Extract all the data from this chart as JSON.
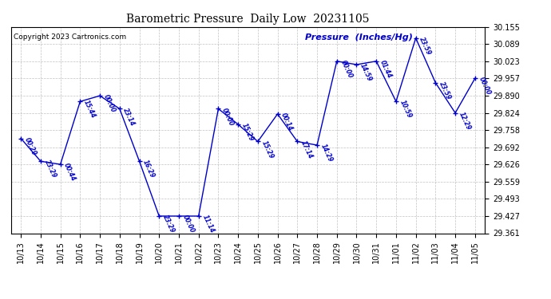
{
  "title": "Barometric Pressure  Daily Low  20231105",
  "pressure_label": "Pressure  (Inches/Hg)",
  "copyright": "Copyright 2023 Cartronics.com",
  "background_color": "#ffffff",
  "line_color": "#0000cc",
  "text_color": "#0000cc",
  "grid_color": "#bbbbbb",
  "title_color": "#000000",
  "ylim_min": 29.361,
  "ylim_max": 30.155,
  "yticks": [
    29.361,
    29.427,
    29.493,
    29.559,
    29.626,
    29.692,
    29.758,
    29.824,
    29.89,
    29.957,
    30.023,
    30.089,
    30.155
  ],
  "data_points": [
    {
      "date": "10/13",
      "value": 29.726,
      "label": "00:29"
    },
    {
      "date": "10/14",
      "value": 29.638,
      "label": "23:29"
    },
    {
      "date": "10/15",
      "value": 29.626,
      "label": "00:44"
    },
    {
      "date": "10/16",
      "value": 29.868,
      "label": "15:44"
    },
    {
      "date": "10/17",
      "value": 29.89,
      "label": "00:00"
    },
    {
      "date": "10/18",
      "value": 29.84,
      "label": "23:14"
    },
    {
      "date": "10/19",
      "value": 29.638,
      "label": "16:29"
    },
    {
      "date": "10/20",
      "value": 29.427,
      "label": "23:29"
    },
    {
      "date": "10/21",
      "value": 29.427,
      "label": "00:00"
    },
    {
      "date": "10/22",
      "value": 29.427,
      "label": "11:14"
    },
    {
      "date": "10/23",
      "value": 29.84,
      "label": "00:00"
    },
    {
      "date": "10/24",
      "value": 29.78,
      "label": "15:29"
    },
    {
      "date": "10/25",
      "value": 29.714,
      "label": "15:29"
    },
    {
      "date": "10/26",
      "value": 29.82,
      "label": "00:14"
    },
    {
      "date": "10/27",
      "value": 29.714,
      "label": "17:14"
    },
    {
      "date": "10/28",
      "value": 29.7,
      "label": "14:29"
    },
    {
      "date": "10/29",
      "value": 30.023,
      "label": "00:00"
    },
    {
      "date": "10/30",
      "value": 30.01,
      "label": "14:59"
    },
    {
      "date": "10/31",
      "value": 30.023,
      "label": "01:44"
    },
    {
      "date": "11/01",
      "value": 29.868,
      "label": "10:59"
    },
    {
      "date": "11/02",
      "value": 30.112,
      "label": "23:59"
    },
    {
      "date": "11/03",
      "value": 29.94,
      "label": "23:59"
    },
    {
      "date": "11/04",
      "value": 29.824,
      "label": "12:29"
    },
    {
      "date": "11/05",
      "value": 29.957,
      "label": "00:00"
    }
  ]
}
